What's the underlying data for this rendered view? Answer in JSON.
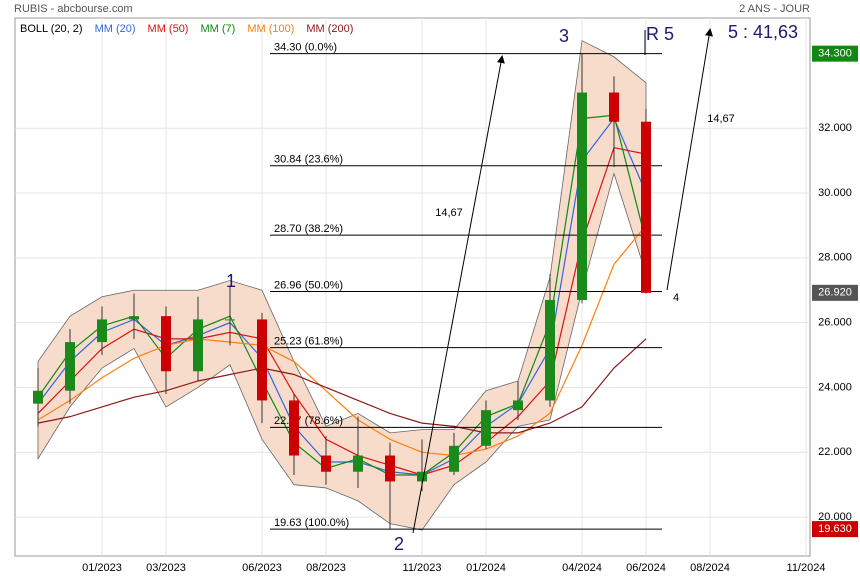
{
  "header": {
    "title": "RUBIS - abcbourse.com",
    "period": "2 ANS - JOUR"
  },
  "chart_data": {
    "type": "candlestick",
    "x": [
      "11/2022",
      "12/2022",
      "01/2023",
      "02/2023",
      "03/2023",
      "04/2023",
      "05/2023",
      "06/2023",
      "07/2023",
      "08/2023",
      "09/2023",
      "10/2023",
      "11/2023",
      "12/2023",
      "01/2024",
      "02/2024",
      "03/2024",
      "04/2024",
      "05/2024",
      "06/2024"
    ],
    "open": [
      23.5,
      23.9,
      25.4,
      26.1,
      26.2,
      24.5,
      26.1,
      26.1,
      23.6,
      21.9,
      21.4,
      21.9,
      21.1,
      21.4,
      22.2,
      23.3,
      23.6,
      26.7,
      33.1,
      32.2
    ],
    "high": [
      24.6,
      25.8,
      26.5,
      26.9,
      26.5,
      26.8,
      27.1,
      26.3,
      23.8,
      22.5,
      23.1,
      22.3,
      22.4,
      22.6,
      23.6,
      24.2,
      27.5,
      34.3,
      33.6,
      32.6
    ],
    "low": [
      22.8,
      23.5,
      25.0,
      25.5,
      23.8,
      24.2,
      25.3,
      22.9,
      21.3,
      21.0,
      20.9,
      19.63,
      20.8,
      21.3,
      22.1,
      23.0,
      23.4,
      26.6,
      30.8,
      26.9
    ],
    "close": [
      23.9,
      25.4,
      26.1,
      26.2,
      24.5,
      26.1,
      26.1,
      23.6,
      21.9,
      21.4,
      21.9,
      21.1,
      21.4,
      22.2,
      23.3,
      23.6,
      26.7,
      33.1,
      32.2,
      26.92
    ],
    "up_color": "#1a8a1a",
    "down_color": "#cc0000",
    "bollinger": {
      "name": "BOLL (20, 2)",
      "color": "#f8dccb",
      "upper": [
        24.8,
        26.2,
        26.8,
        27.0,
        27.0,
        27.0,
        27.3,
        27.0,
        24.8,
        22.8,
        23.2,
        22.6,
        22.7,
        22.7,
        23.9,
        24.2,
        27.4,
        34.7,
        34.2,
        33.4
      ],
      "lower": [
        21.8,
        23.4,
        24.6,
        25.2,
        23.4,
        24.0,
        24.7,
        22.4,
        21.0,
        20.9,
        20.5,
        19.8,
        19.6,
        21.0,
        21.7,
        22.8,
        23.0,
        27.0,
        30.6,
        27.5
      ]
    },
    "series": [
      {
        "name": "MM (20)",
        "color": "#3366dd",
        "values": [
          23.5,
          24.8,
          25.7,
          26.1,
          25.3,
          25.6,
          26.0,
          24.9,
          22.8,
          21.7,
          21.7,
          21.4,
          21.3,
          21.8,
          22.8,
          23.5,
          25.2,
          31.0,
          32.3,
          30.0
        ]
      },
      {
        "name": "MM (50)",
        "color": "#dd1111",
        "values": [
          23.2,
          24.2,
          25.2,
          25.8,
          25.5,
          25.5,
          25.7,
          25.5,
          23.8,
          22.4,
          21.9,
          21.6,
          21.3,
          21.6,
          22.3,
          23.1,
          24.2,
          28.5,
          31.4,
          31.2
        ]
      },
      {
        "name": "MM (7)",
        "color": "#118811",
        "values": [
          23.7,
          25.1,
          25.9,
          26.2,
          24.9,
          25.8,
          26.2,
          24.2,
          22.3,
          21.5,
          21.8,
          21.3,
          21.3,
          22.0,
          23.1,
          23.5,
          26.0,
          32.3,
          32.4,
          28.5
        ]
      },
      {
        "name": "MM (100)",
        "color": "#ff7f0e",
        "values": [
          23.0,
          23.6,
          24.3,
          24.9,
          25.3,
          25.5,
          25.4,
          25.3,
          24.8,
          23.9,
          23.0,
          22.4,
          22.0,
          21.9,
          22.1,
          22.5,
          23.2,
          25.3,
          27.8,
          29.0
        ]
      },
      {
        "name": "MM (200)",
        "color": "#8b1a1a",
        "values": [
          22.9,
          23.1,
          23.4,
          23.7,
          23.9,
          24.2,
          24.4,
          24.6,
          24.4,
          24.0,
          23.6,
          23.2,
          22.9,
          22.8,
          22.6,
          22.6,
          22.9,
          23.4,
          24.6,
          25.5
        ]
      }
    ],
    "xlim": [
      "10/2022",
      "11/2024"
    ],
    "xticks": [
      "01/2023",
      "03/2023",
      "06/2023",
      "08/2023",
      "11/2023",
      "01/2024",
      "04/2024",
      "06/2024",
      "08/2024",
      "11/2024"
    ],
    "ylim": [
      18.8,
      35.4
    ],
    "yticks": [
      {
        "value": 20,
        "label": "20.000"
      },
      {
        "value": 22,
        "label": "22.000"
      },
      {
        "value": 24,
        "label": "24.000"
      },
      {
        "value": 26,
        "label": "26.000"
      },
      {
        "value": 28,
        "label": "28.000"
      },
      {
        "value": 30,
        "label": "30.000"
      },
      {
        "value": 32,
        "label": "32.000"
      }
    ],
    "grid": true,
    "badges": [
      {
        "value": 34.3,
        "label": "34.300",
        "color": "#118811"
      },
      {
        "value": 26.92,
        "label": "26.920",
        "color": "#555555"
      },
      {
        "value": 19.63,
        "label": "19.630",
        "color": "#cc0000"
      }
    ],
    "levels": [
      {
        "value": 34.3,
        "label": "34.30  (0.0%)"
      },
      {
        "value": 30.84,
        "label": "30.84  (23.6%)"
      },
      {
        "value": 28.7,
        "label": "28.70  (38.2%)"
      },
      {
        "value": 26.96,
        "label": "26.96  (50.0%)"
      },
      {
        "value": 25.23,
        "label": "25.23  (61.8%)"
      },
      {
        "value": 22.77,
        "label": "22.77  (78.6%)"
      },
      {
        "value": 19.63,
        "label": "19.63  (100.0%)"
      }
    ],
    "annotations": [
      "1",
      "2",
      "3",
      "R 5",
      "5 : 41,63",
      "14,67",
      "14,67",
      "4"
    ]
  }
}
